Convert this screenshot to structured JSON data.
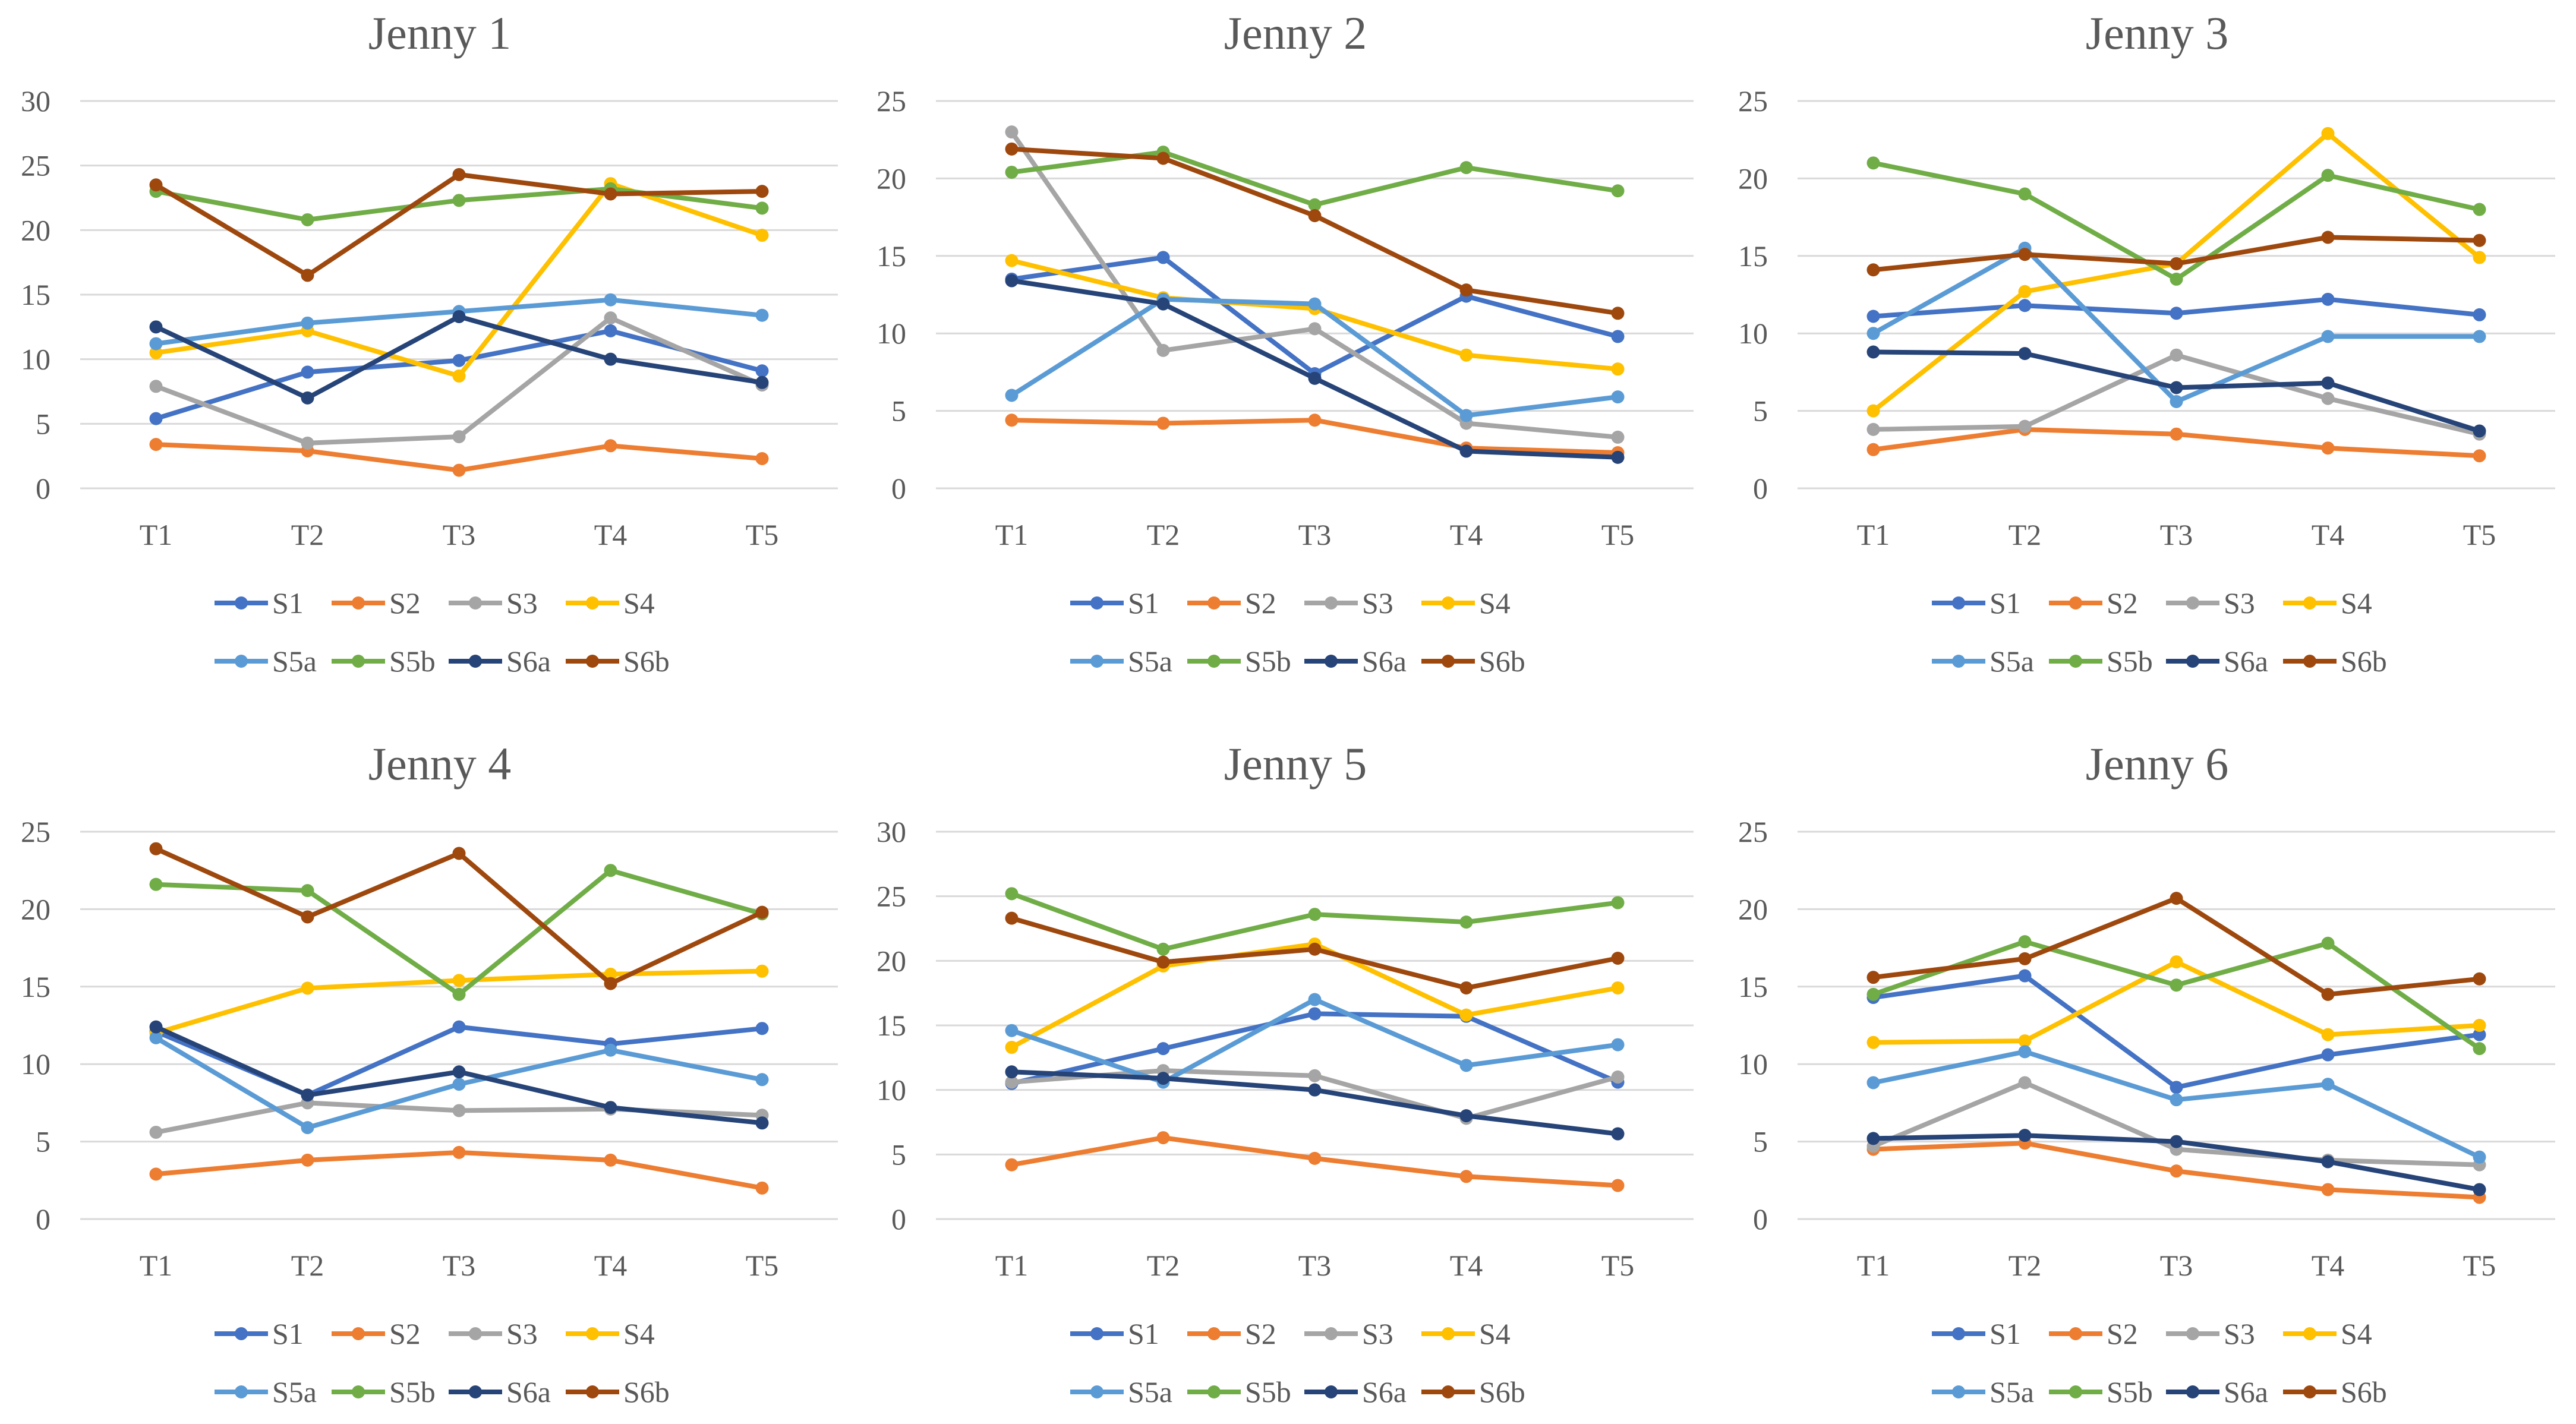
{
  "chart_data": [
    {
      "type": "line",
      "title": "Jenny 1",
      "categories": [
        "T1",
        "T2",
        "T3",
        "T4",
        "T5"
      ],
      "ylim": [
        0,
        30
      ],
      "yticks": [
        0,
        5,
        10,
        15,
        20,
        25,
        30
      ],
      "xlabel": "",
      "ylabel": "",
      "grid": true,
      "legend": "bottom",
      "series": [
        {
          "name": "S1",
          "color": "#4472C4",
          "values": [
            5.4,
            9.0,
            9.9,
            12.2,
            9.1
          ]
        },
        {
          "name": "S2",
          "color": "#ED7D31",
          "values": [
            3.4,
            2.9,
            1.4,
            3.3,
            2.3
          ]
        },
        {
          "name": "S3",
          "color": "#A5A5A5",
          "values": [
            7.9,
            3.5,
            4.0,
            13.2,
            8.0
          ]
        },
        {
          "name": "S4",
          "color": "#FFC000",
          "values": [
            10.5,
            12.2,
            8.7,
            23.6,
            19.6
          ]
        },
        {
          "name": "S5a",
          "color": "#5B9BD5",
          "values": [
            11.2,
            12.8,
            13.7,
            14.6,
            13.4
          ]
        },
        {
          "name": "S5b",
          "color": "#70AD47",
          "values": [
            23.0,
            20.8,
            22.3,
            23.2,
            21.7
          ]
        },
        {
          "name": "S6a",
          "color": "#264478",
          "values": [
            12.5,
            7.0,
            13.3,
            10.0,
            8.2
          ]
        },
        {
          "name": "S6b",
          "color": "#9E480E",
          "values": [
            23.5,
            16.5,
            24.3,
            22.8,
            23.0
          ]
        }
      ]
    },
    {
      "type": "line",
      "title": "Jenny 2",
      "categories": [
        "T1",
        "T2",
        "T3",
        "T4",
        "T5"
      ],
      "ylim": [
        0,
        25
      ],
      "yticks": [
        0,
        5,
        10,
        15,
        20,
        25
      ],
      "xlabel": "",
      "ylabel": "",
      "grid": true,
      "legend": "bottom",
      "series": [
        {
          "name": "S1",
          "color": "#4472C4",
          "values": [
            13.5,
            14.9,
            7.4,
            12.4,
            9.8
          ]
        },
        {
          "name": "S2",
          "color": "#ED7D31",
          "values": [
            4.4,
            4.2,
            4.4,
            2.6,
            2.3
          ]
        },
        {
          "name": "S3",
          "color": "#A5A5A5",
          "values": [
            23.0,
            8.9,
            10.3,
            4.2,
            3.3
          ]
        },
        {
          "name": "S4",
          "color": "#FFC000",
          "values": [
            14.7,
            12.3,
            11.6,
            8.6,
            7.7
          ]
        },
        {
          "name": "S5a",
          "color": "#5B9BD5",
          "values": [
            6.0,
            12.2,
            11.9,
            4.7,
            5.9
          ]
        },
        {
          "name": "S5b",
          "color": "#70AD47",
          "values": [
            20.4,
            21.7,
            18.3,
            20.7,
            19.2
          ]
        },
        {
          "name": "S6a",
          "color": "#264478",
          "values": [
            13.4,
            11.9,
            7.1,
            2.4,
            2.0
          ]
        },
        {
          "name": "S6b",
          "color": "#9E480E",
          "values": [
            21.9,
            21.3,
            17.6,
            12.8,
            11.3
          ]
        }
      ]
    },
    {
      "type": "line",
      "title": "Jenny 3",
      "categories": [
        "T1",
        "T2",
        "T3",
        "T4",
        "T5"
      ],
      "ylim": [
        0,
        25
      ],
      "yticks": [
        0,
        5,
        10,
        15,
        20,
        25
      ],
      "xlabel": "",
      "ylabel": "",
      "grid": true,
      "legend": "bottom",
      "series": [
        {
          "name": "S1",
          "color": "#4472C4",
          "values": [
            11.1,
            11.8,
            11.3,
            12.2,
            11.2
          ]
        },
        {
          "name": "S2",
          "color": "#ED7D31",
          "values": [
            2.5,
            3.8,
            3.5,
            2.6,
            2.1
          ]
        },
        {
          "name": "S3",
          "color": "#A5A5A5",
          "values": [
            3.8,
            4.0,
            8.6,
            5.8,
            3.5
          ]
        },
        {
          "name": "S4",
          "color": "#FFC000",
          "values": [
            5.0,
            12.7,
            14.5,
            22.9,
            14.9
          ]
        },
        {
          "name": "S5a",
          "color": "#5B9BD5",
          "values": [
            10.0,
            15.5,
            5.6,
            9.8,
            9.8
          ]
        },
        {
          "name": "S5b",
          "color": "#70AD47",
          "values": [
            21.0,
            19.0,
            13.5,
            20.2,
            18.0
          ]
        },
        {
          "name": "S6a",
          "color": "#264478",
          "values": [
            8.8,
            8.7,
            6.5,
            6.8,
            3.7
          ]
        },
        {
          "name": "S6b",
          "color": "#9E480E",
          "values": [
            14.1,
            15.1,
            14.5,
            16.2,
            16.0
          ]
        }
      ]
    },
    {
      "type": "line",
      "title": "Jenny 4",
      "categories": [
        "T1",
        "T2",
        "T3",
        "T4",
        "T5"
      ],
      "ylim": [
        0,
        25
      ],
      "yticks": [
        0,
        5,
        10,
        15,
        20,
        25
      ],
      "xlabel": "",
      "ylabel": "",
      "grid": true,
      "legend": "bottom",
      "series": [
        {
          "name": "S1",
          "color": "#4472C4",
          "values": [
            12.1,
            8.0,
            12.4,
            11.3,
            12.3
          ]
        },
        {
          "name": "S2",
          "color": "#ED7D31",
          "values": [
            2.9,
            3.8,
            4.3,
            3.8,
            2.0
          ]
        },
        {
          "name": "S3",
          "color": "#A5A5A5",
          "values": [
            5.6,
            7.5,
            7.0,
            7.1,
            6.7
          ]
        },
        {
          "name": "S4",
          "color": "#FFC000",
          "values": [
            12.0,
            14.9,
            15.4,
            15.8,
            16.0
          ]
        },
        {
          "name": "S5a",
          "color": "#5B9BD5",
          "values": [
            11.7,
            5.9,
            8.7,
            10.9,
            9.0
          ]
        },
        {
          "name": "S5b",
          "color": "#70AD47",
          "values": [
            21.6,
            21.2,
            14.5,
            22.5,
            19.7
          ]
        },
        {
          "name": "S6a",
          "color": "#264478",
          "values": [
            12.4,
            8.0,
            9.5,
            7.2,
            6.2
          ]
        },
        {
          "name": "S6b",
          "color": "#9E480E",
          "values": [
            23.9,
            19.5,
            23.6,
            15.2,
            19.8
          ]
        }
      ]
    },
    {
      "type": "line",
      "title": "Jenny 5",
      "categories": [
        "T1",
        "T2",
        "T3",
        "T4",
        "T5"
      ],
      "ylim": [
        0,
        30
      ],
      "yticks": [
        0,
        5,
        10,
        15,
        20,
        25,
        30
      ],
      "xlabel": "",
      "ylabel": "",
      "grid": true,
      "legend": "bottom",
      "series": [
        {
          "name": "S1",
          "color": "#4472C4",
          "values": [
            10.5,
            13.2,
            15.9,
            15.7,
            10.6
          ]
        },
        {
          "name": "S2",
          "color": "#ED7D31",
          "values": [
            4.2,
            6.3,
            4.7,
            3.3,
            2.6
          ]
        },
        {
          "name": "S3",
          "color": "#A5A5A5",
          "values": [
            10.6,
            11.5,
            11.1,
            7.8,
            11.0
          ]
        },
        {
          "name": "S4",
          "color": "#FFC000",
          "values": [
            13.3,
            19.6,
            21.3,
            15.8,
            17.9
          ]
        },
        {
          "name": "S5a",
          "color": "#5B9BD5",
          "values": [
            14.6,
            10.6,
            17.0,
            11.9,
            13.5
          ]
        },
        {
          "name": "S5b",
          "color": "#70AD47",
          "values": [
            25.2,
            20.9,
            23.6,
            23.0,
            24.5
          ]
        },
        {
          "name": "S6a",
          "color": "#264478",
          "values": [
            11.4,
            10.9,
            10.0,
            8.0,
            6.6
          ]
        },
        {
          "name": "S6b",
          "color": "#9E480E",
          "values": [
            23.3,
            19.9,
            20.9,
            17.9,
            20.2
          ]
        }
      ]
    },
    {
      "type": "line",
      "title": "Jenny 6",
      "categories": [
        "T1",
        "T2",
        "T3",
        "T4",
        "T5"
      ],
      "ylim": [
        0,
        25
      ],
      "yticks": [
        0,
        5,
        10,
        15,
        20,
        25
      ],
      "xlabel": "",
      "ylabel": "",
      "grid": true,
      "legend": "bottom",
      "series": [
        {
          "name": "S1",
          "color": "#4472C4",
          "values": [
            14.3,
            15.7,
            8.5,
            10.6,
            11.9
          ]
        },
        {
          "name": "S2",
          "color": "#ED7D31",
          "values": [
            4.5,
            4.9,
            3.1,
            1.9,
            1.4
          ]
        },
        {
          "name": "S3",
          "color": "#A5A5A5",
          "values": [
            4.7,
            8.8,
            4.5,
            3.8,
            3.5
          ]
        },
        {
          "name": "S4",
          "color": "#FFC000",
          "values": [
            11.4,
            11.5,
            16.6,
            11.9,
            12.5
          ]
        },
        {
          "name": "S5a",
          "color": "#5B9BD5",
          "values": [
            8.8,
            10.8,
            7.7,
            8.7,
            4.0
          ]
        },
        {
          "name": "S5b",
          "color": "#70AD47",
          "values": [
            14.5,
            17.9,
            15.1,
            17.8,
            11.0
          ]
        },
        {
          "name": "S6a",
          "color": "#264478",
          "values": [
            5.2,
            5.4,
            5.0,
            3.7,
            1.9
          ]
        },
        {
          "name": "S6b",
          "color": "#9E480E",
          "values": [
            15.6,
            16.8,
            20.7,
            14.5,
            15.5
          ]
        }
      ]
    }
  ]
}
